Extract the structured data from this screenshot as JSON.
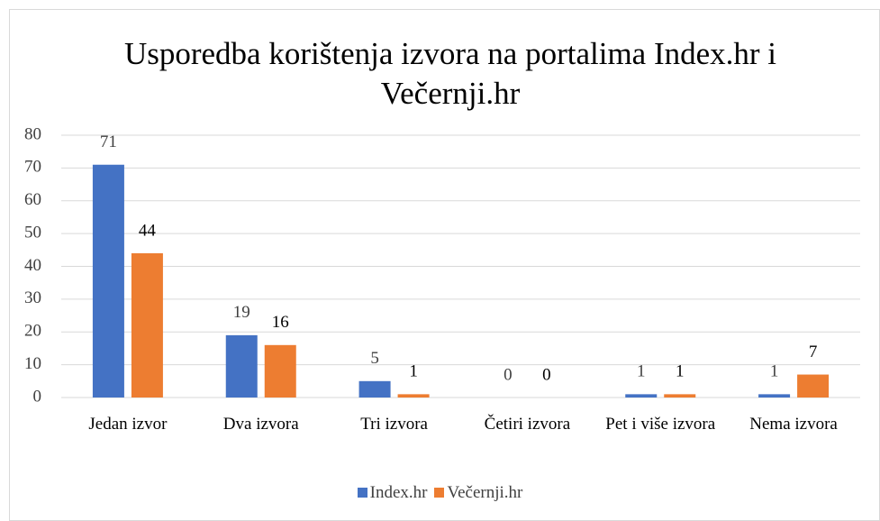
{
  "chart_data": {
    "type": "bar",
    "title": "Usporedba korištenja izvora na portalima Index.hr i Večernji.hr",
    "categories": [
      "Jedan izvor",
      "Dva izvora",
      "Tri izvora",
      "Četiri izvora",
      "Pet i više izvora",
      "Nema izvora"
    ],
    "series": [
      {
        "name": "Index.hr",
        "color": "#4472c4",
        "values": [
          71,
          19,
          5,
          0,
          1,
          1
        ]
      },
      {
        "name": "Večernji.hr",
        "color": "#ed7d31",
        "values": [
          44,
          16,
          1,
          0,
          1,
          7
        ]
      }
    ],
    "ylim": [
      0,
      80
    ],
    "yticks": [
      0,
      10,
      20,
      30,
      40,
      50,
      60,
      70,
      80
    ],
    "grid": true,
    "legend": "bottom"
  }
}
